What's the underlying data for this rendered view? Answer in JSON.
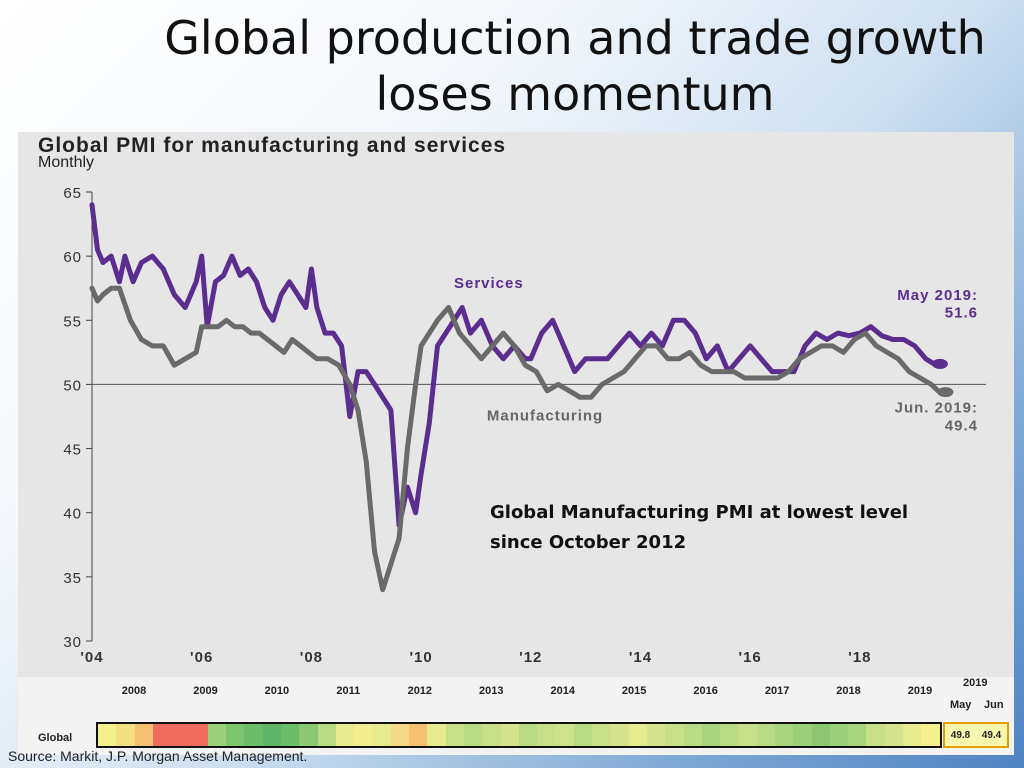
{
  "slide": {
    "title": "Global production and trade growth loses momentum",
    "annotation_line1": "Global Manufacturing PMI at lowest level",
    "annotation_line2": "since October 2012",
    "source": "Source: Markit, J.P. Morgan Asset Management."
  },
  "chart_data": {
    "type": "line",
    "title": "Global PMI for manufacturing and services",
    "subtitle": "Monthly",
    "ylim": [
      30,
      65
    ],
    "yticks": [
      30,
      35,
      40,
      45,
      50,
      55,
      60,
      65
    ],
    "xlim": [
      2004.0,
      2020.3
    ],
    "xticks": [
      {
        "value": 2004,
        "label": "'04"
      },
      {
        "value": 2006,
        "label": "'06"
      },
      {
        "value": 2008,
        "label": "'08"
      },
      {
        "value": 2010,
        "label": "'10"
      },
      {
        "value": 2012,
        "label": "'12"
      },
      {
        "value": 2014,
        "label": "'14"
      },
      {
        "value": 2016,
        "label": "'16"
      },
      {
        "value": 2018,
        "label": "'18"
      }
    ],
    "reference_line": 50,
    "grid": false,
    "series": [
      {
        "name": "Services",
        "color": "#5b2d8e",
        "x": [
          2004.0,
          2004.1,
          2004.2,
          2004.35,
          2004.5,
          2004.6,
          2004.75,
          2004.9,
          2005.1,
          2005.3,
          2005.5,
          2005.7,
          2005.9,
          2006.0,
          2006.1,
          2006.25,
          2006.4,
          2006.55,
          2006.7,
          2006.85,
          2007.0,
          2007.15,
          2007.3,
          2007.45,
          2007.6,
          2007.75,
          2007.9,
          2008.0,
          2008.1,
          2008.25,
          2008.4,
          2008.55,
          2008.7,
          2008.85,
          2009.0,
          2009.15,
          2009.3,
          2009.45,
          2009.6,
          2009.75,
          2009.9,
          2010.0,
          2010.15,
          2010.3,
          2010.45,
          2010.6,
          2010.75,
          2010.9,
          2011.1,
          2011.3,
          2011.5,
          2011.7,
          2011.9,
          2012.0,
          2012.2,
          2012.4,
          2012.6,
          2012.8,
          2013.0,
          2013.2,
          2013.4,
          2013.6,
          2013.8,
          2014.0,
          2014.2,
          2014.4,
          2014.6,
          2014.8,
          2015.0,
          2015.2,
          2015.4,
          2015.6,
          2015.8,
          2016.0,
          2016.2,
          2016.4,
          2016.6,
          2016.8,
          2017.0,
          2017.2,
          2017.4,
          2017.6,
          2017.8,
          2018.0,
          2018.2,
          2018.4,
          2018.6,
          2018.8,
          2019.0,
          2019.2,
          2019.35
        ],
        "y": [
          64,
          60.5,
          59.5,
          60,
          58,
          60,
          58,
          59.5,
          60,
          59,
          57,
          56,
          58,
          60,
          54.5,
          58,
          58.5,
          60,
          58.5,
          59,
          58,
          56,
          55,
          57,
          58,
          57,
          56,
          59,
          56,
          54,
          54,
          53,
          47.5,
          51,
          51,
          50,
          49,
          48,
          39,
          42,
          40,
          43,
          47,
          53,
          54,
          55,
          56,
          54,
          55,
          53,
          52,
          53,
          52,
          52,
          54,
          55,
          53,
          51,
          52,
          52,
          52,
          53,
          54,
          53,
          54,
          53,
          55,
          55,
          54,
          52,
          53,
          51,
          52,
          53,
          52,
          51,
          51,
          51,
          53,
          54,
          53.5,
          54,
          53.8,
          54,
          54.5,
          53.8,
          53.5,
          53.5,
          53,
          52,
          51.6
        ]
      },
      {
        "name": "Manufacturing",
        "color": "#6a6a6a",
        "x": [
          2004.0,
          2004.1,
          2004.2,
          2004.35,
          2004.5,
          2004.7,
          2004.9,
          2005.1,
          2005.3,
          2005.5,
          2005.7,
          2005.9,
          2006.0,
          2006.15,
          2006.3,
          2006.45,
          2006.6,
          2006.75,
          2006.9,
          2007.05,
          2007.2,
          2007.35,
          2007.5,
          2007.65,
          2007.8,
          2007.95,
          2008.1,
          2008.3,
          2008.5,
          2008.7,
          2008.85,
          2009.0,
          2009.15,
          2009.3,
          2009.45,
          2009.6,
          2009.75,
          2009.9,
          2010.0,
          2010.15,
          2010.3,
          2010.5,
          2010.7,
          2010.9,
          2011.1,
          2011.3,
          2011.5,
          2011.7,
          2011.9,
          2012.1,
          2012.3,
          2012.5,
          2012.7,
          2012.9,
          2013.1,
          2013.3,
          2013.5,
          2013.7,
          2013.9,
          2014.1,
          2014.3,
          2014.5,
          2014.7,
          2014.9,
          2015.1,
          2015.3,
          2015.5,
          2015.7,
          2015.9,
          2016.1,
          2016.3,
          2016.5,
          2016.7,
          2016.9,
          2017.1,
          2017.3,
          2017.5,
          2017.7,
          2017.9,
          2018.1,
          2018.3,
          2018.5,
          2018.7,
          2018.9,
          2019.1,
          2019.3,
          2019.45
        ],
        "y": [
          57.5,
          56.5,
          57,
          57.5,
          57.5,
          55,
          53.5,
          53,
          53,
          51.5,
          52,
          52.5,
          54.5,
          54.5,
          54.5,
          55,
          54.5,
          54.5,
          54,
          54,
          53.5,
          53,
          52.5,
          53.5,
          53,
          52.5,
          52,
          52,
          51.5,
          50,
          48,
          44,
          37,
          34,
          36,
          38,
          45,
          50,
          53,
          54,
          55,
          56,
          54,
          53,
          52,
          53,
          54,
          53,
          51.5,
          51,
          49.5,
          50,
          49.5,
          49,
          49,
          50,
          50.5,
          51,
          52,
          53,
          53,
          52,
          52,
          52.5,
          51.5,
          51,
          51,
          51,
          50.5,
          50.5,
          50.5,
          50.5,
          51,
          52,
          52.5,
          53,
          53,
          52.5,
          53.5,
          54,
          53,
          52.5,
          52,
          51,
          50.5,
          50,
          49.4
        ]
      }
    ],
    "labels": {
      "services": "Services",
      "manufacturing": "Manufacturing",
      "may_label": "May 2019:",
      "may_value": "51.6",
      "jun_label": "Jun. 2019:",
      "jun_value": "49.4"
    }
  },
  "heatmap": {
    "row_label": "Global",
    "years": [
      "2008",
      "2009",
      "2010",
      "2011",
      "2012",
      "2013",
      "2014",
      "2015",
      "2016",
      "2017",
      "2018",
      "2019"
    ],
    "cells": [
      "#f4f08c",
      "#f0e080",
      "#f5c070",
      "#ee6b5e",
      "#ee6b5e",
      "#ee6b5e",
      "#9ad07a",
      "#7cc46e",
      "#6cbd6a",
      "#5cb466",
      "#6cbd6a",
      "#8cc874",
      "#b9db84",
      "#e6ea90",
      "#f2ee8e",
      "#e6ea90",
      "#f4d98a",
      "#f5c070",
      "#e6ea90",
      "#c7e088",
      "#b9db84",
      "#c7e088",
      "#d5e48c",
      "#b9db84",
      "#c7e088",
      "#cde28a",
      "#b9db84",
      "#c7e088",
      "#d5e48c",
      "#e6ea90",
      "#d5e48c",
      "#c7e088",
      "#b9db84",
      "#a8d47e",
      "#b9db84",
      "#c7e088",
      "#b9db84",
      "#a8d47e",
      "#9ad07a",
      "#8cc874",
      "#9ad07a",
      "#a8d47e",
      "#c7e088",
      "#d5e48c",
      "#e6ea90",
      "#f4f08c"
    ],
    "recent_year": "2019",
    "recent_months": [
      "May",
      "Jun"
    ],
    "recent_values": [
      "49.8",
      "49.4"
    ]
  }
}
